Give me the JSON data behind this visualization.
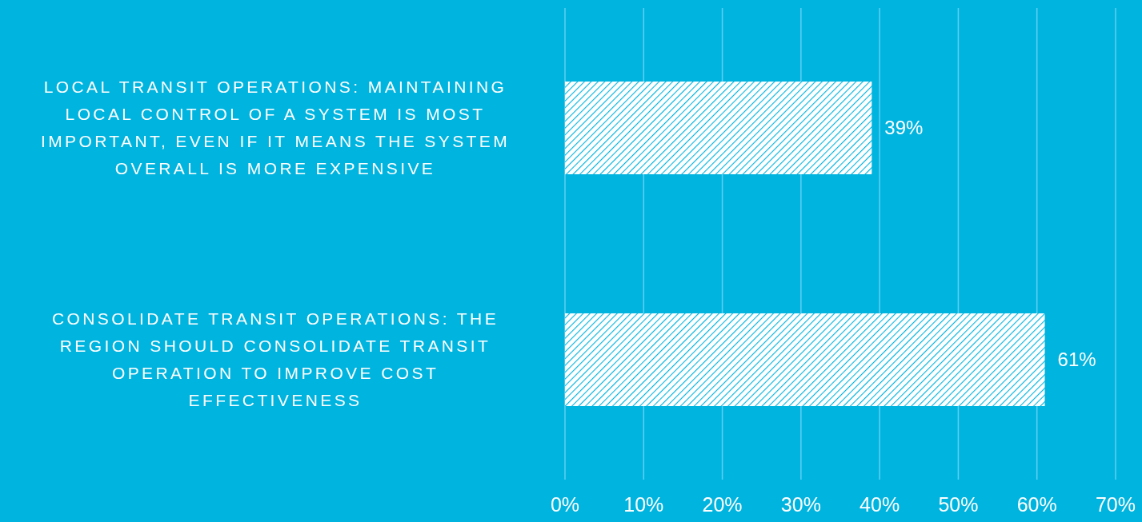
{
  "chart_data": {
    "type": "bar",
    "orientation": "horizontal",
    "categories": [
      "LOCAL TRANSIT OPERATIONS: MAINTAINING LOCAL CONTROL OF A SYSTEM IS MOST IMPORTANT, EVEN IF IT MEANS THE SYSTEM OVERALL IS MORE EXPENSIVE",
      "CONSOLIDATE TRANSIT OPERATIONS: THE REGION SHOULD CONSOLIDATE TRANSIT OPERATION TO IMPROVE COST EFFECTIVENESS"
    ],
    "values": [
      39,
      61
    ],
    "color": "#ffffff",
    "value_labels": [
      "39%",
      "61%"
    ],
    "xlim": [
      0,
      70
    ],
    "xticks": [
      {
        "value": 0,
        "label": "0%"
      },
      {
        "value": 10,
        "label": "10%"
      },
      {
        "value": 20,
        "label": "20%"
      },
      {
        "value": 30,
        "label": "30%"
      },
      {
        "value": 40,
        "label": "40%"
      },
      {
        "value": 50,
        "label": "50%"
      },
      {
        "value": 60,
        "label": "60%"
      },
      {
        "value": 70,
        "label": "70%"
      }
    ],
    "grid": "x"
  }
}
